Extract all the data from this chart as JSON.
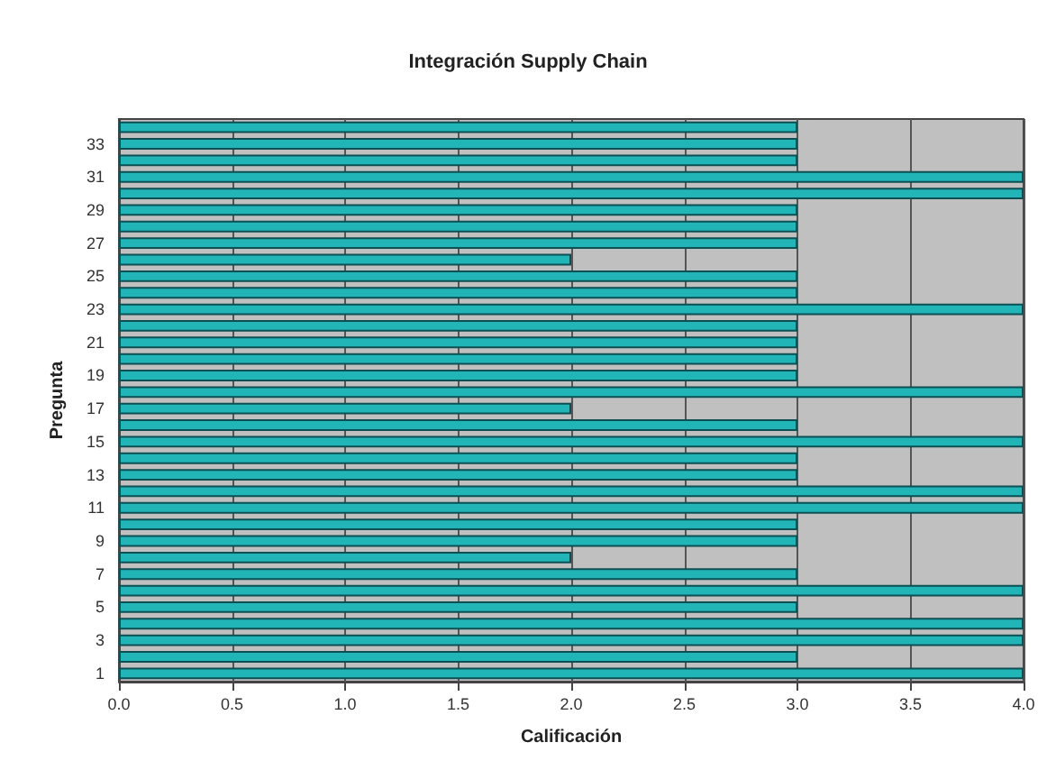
{
  "chart_data": {
    "type": "bar",
    "orientation": "horizontal",
    "title": "Integración Supply Chain",
    "xlabel": "Calificación",
    "ylabel": "Pregunta",
    "categories": [
      null,
      "33",
      null,
      "31",
      null,
      "29",
      null,
      "27",
      null,
      "25",
      null,
      "23",
      null,
      "21",
      null,
      "19",
      null,
      "17",
      null,
      "15",
      null,
      "13",
      null,
      "11",
      null,
      "9",
      null,
      "7",
      null,
      "5",
      null,
      "3",
      null,
      "1"
    ],
    "values": [
      3,
      3,
      3,
      4,
      4,
      3,
      3,
      3,
      2,
      3,
      3,
      4,
      3,
      3,
      3,
      3,
      4,
      2,
      3,
      4,
      3,
      3,
      4,
      4,
      3,
      3,
      2,
      3,
      4,
      3,
      4,
      4,
      3,
      4
    ],
    "color": "#22b5b8",
    "xlim": [
      0,
      4
    ],
    "xticks": [
      {
        "value": 0,
        "label": "0.0"
      },
      {
        "value": 0.5,
        "label": "0.5"
      },
      {
        "value": 1,
        "label": "1.0"
      },
      {
        "value": 1.5,
        "label": "1.5"
      },
      {
        "value": 2,
        "label": "2.0"
      },
      {
        "value": 2.5,
        "label": "2.5"
      },
      {
        "value": 3,
        "label": "3.0"
      },
      {
        "value": 3.5,
        "label": "3.5"
      },
      {
        "value": 4,
        "label": "4.0"
      }
    ],
    "grid": "x"
  }
}
